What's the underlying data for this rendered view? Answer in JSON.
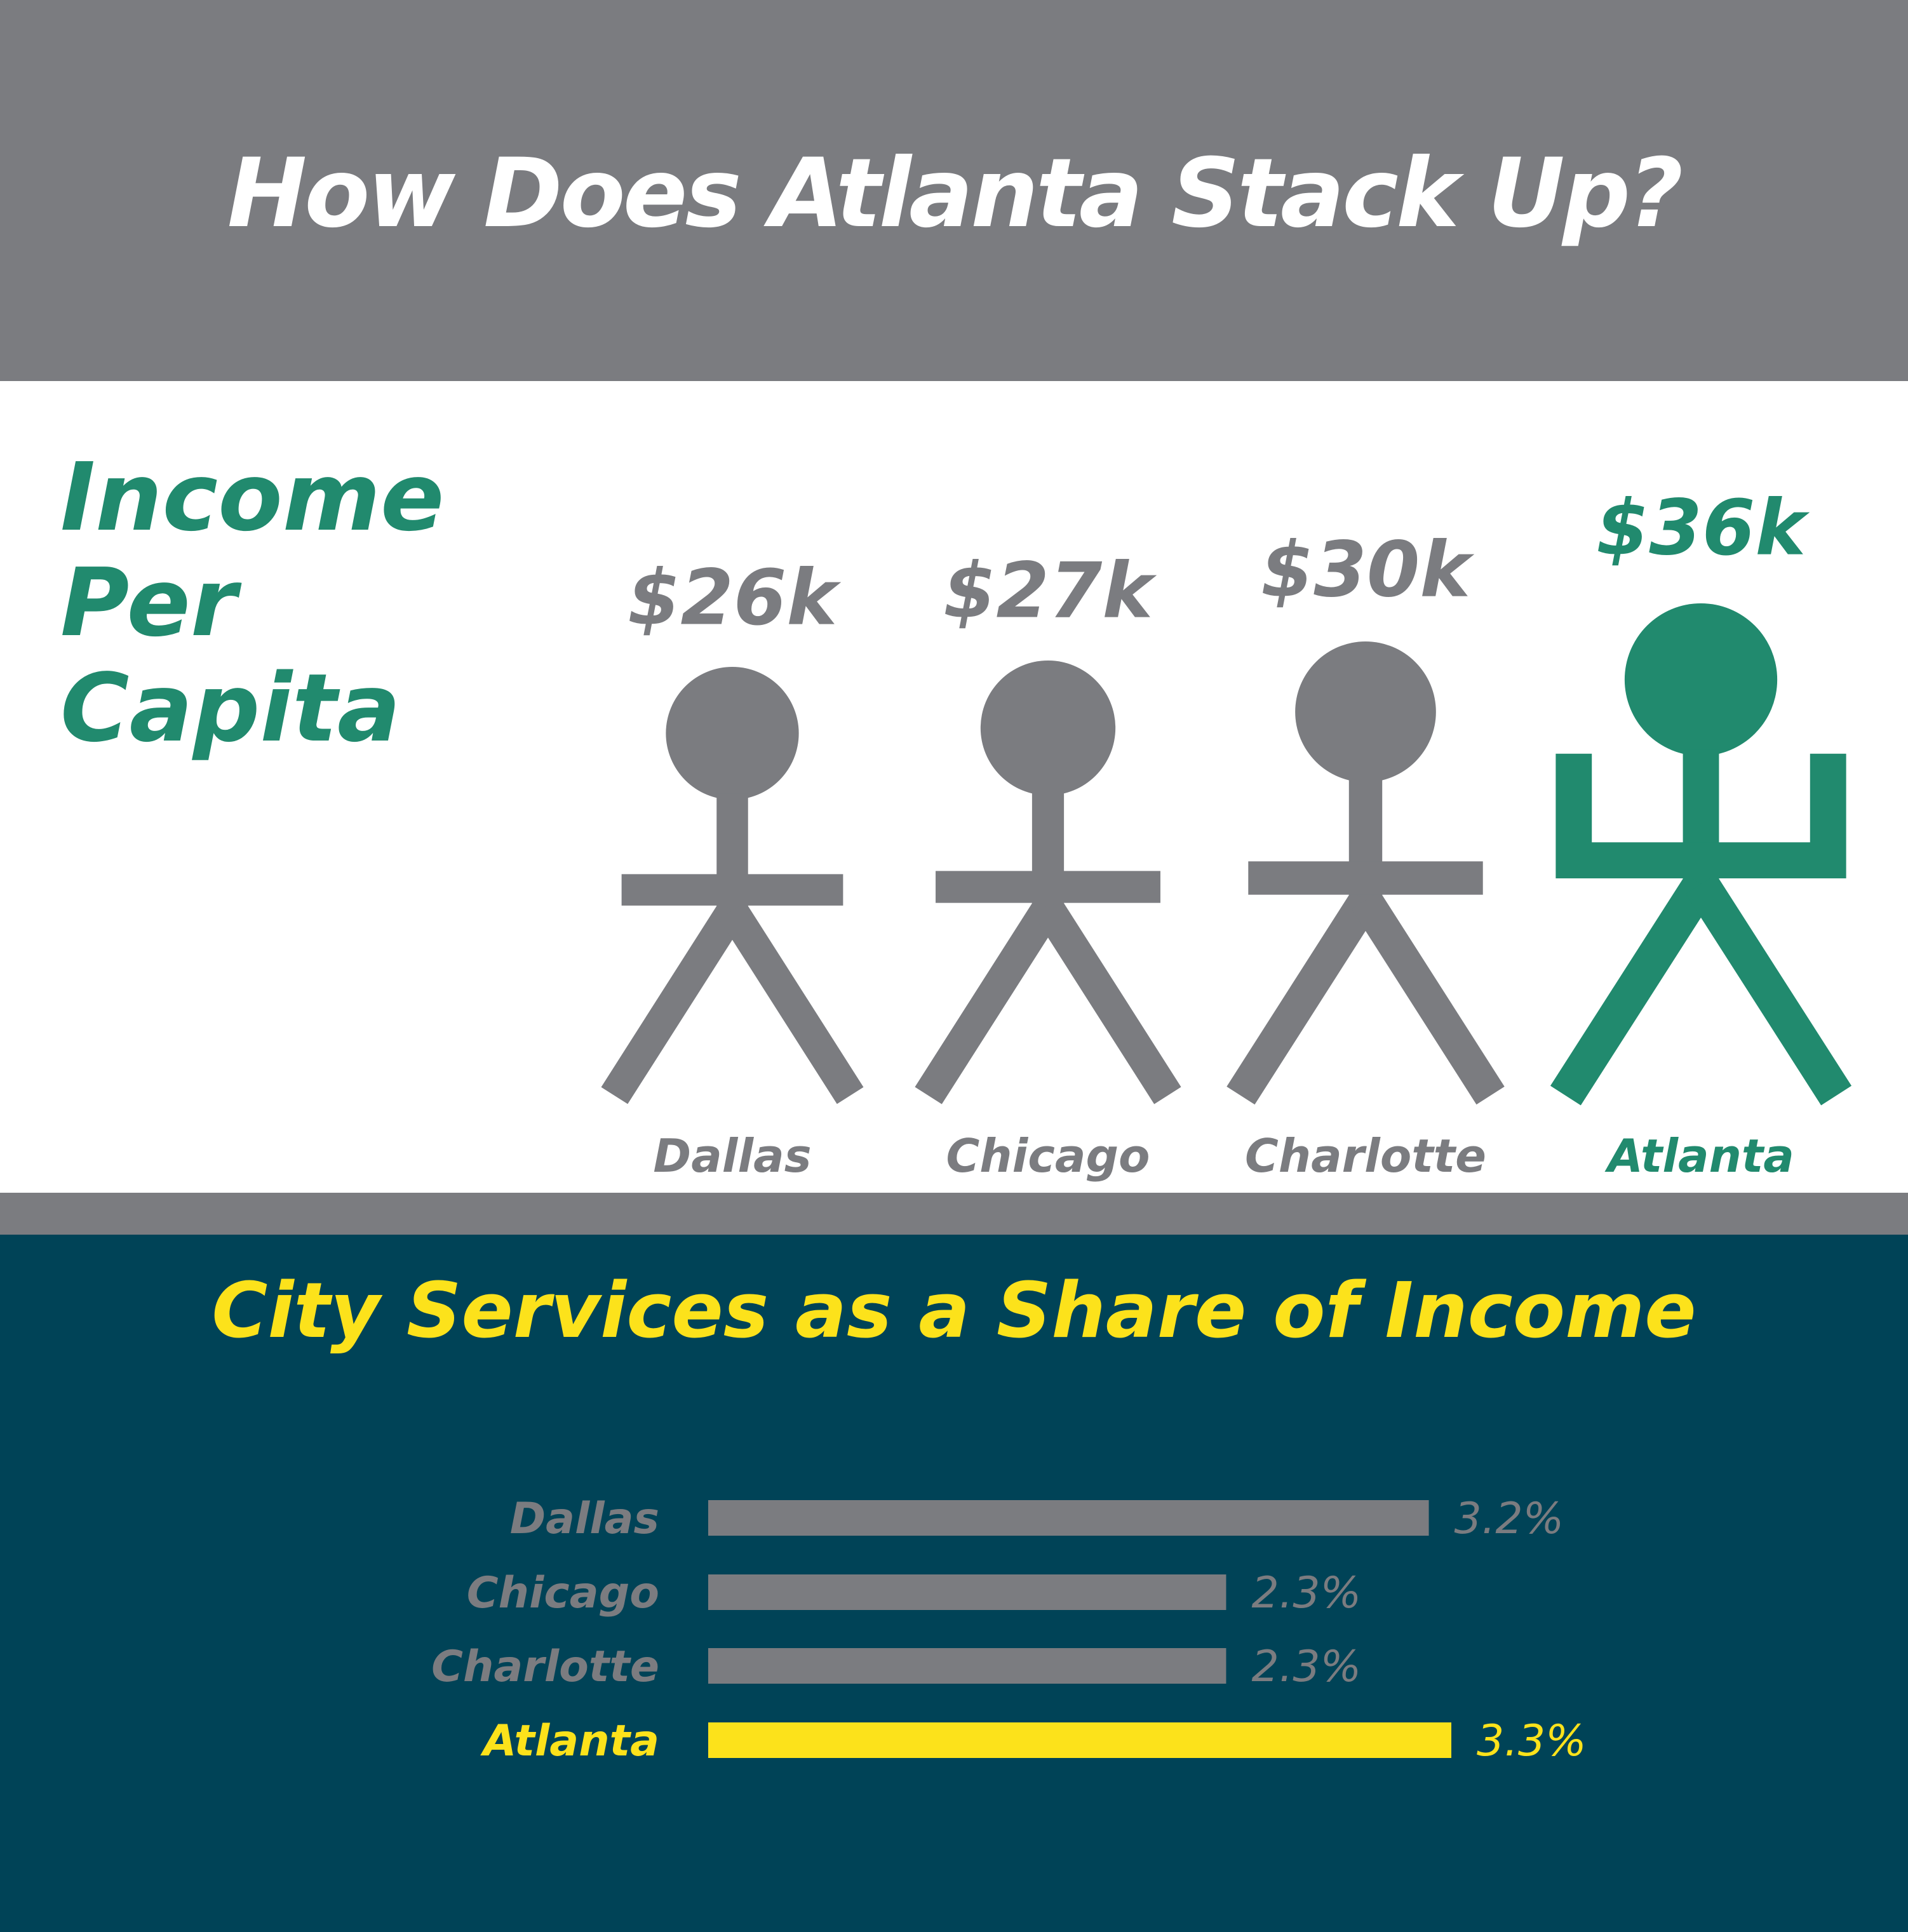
{
  "header": {
    "title": "How Does Atlanta Stack Up?"
  },
  "income_section": {
    "title_lines": [
      "Income",
      "Per",
      "Capita"
    ]
  },
  "services_section": {
    "title": "City Services as a Share of Income"
  },
  "colors": {
    "gray": "#7b7c80",
    "green": "#218a6e",
    "navy": "#004357",
    "yellow": "#fce21b",
    "white": "#ffffff"
  },
  "chart_data": [
    {
      "type": "pictogram",
      "title": "Income Per Capita",
      "categories": [
        "Dallas",
        "Chicago",
        "Charlotte",
        "Atlanta"
      ],
      "values": [
        26,
        27,
        30,
        36
      ],
      "value_labels": [
        "$26k",
        "$27k",
        "$30k",
        "$36k"
      ],
      "highlight": "Atlanta"
    },
    {
      "type": "bar",
      "orientation": "horizontal",
      "title": "City Services as a Share of Income",
      "categories": [
        "Dallas",
        "Chicago",
        "Charlotte",
        "Atlanta"
      ],
      "values": [
        3.2,
        2.3,
        2.3,
        3.3
      ],
      "value_labels": [
        "3.2%",
        "2.3%",
        "2.3%",
        "3.3%"
      ],
      "highlight": "Atlanta"
    }
  ]
}
